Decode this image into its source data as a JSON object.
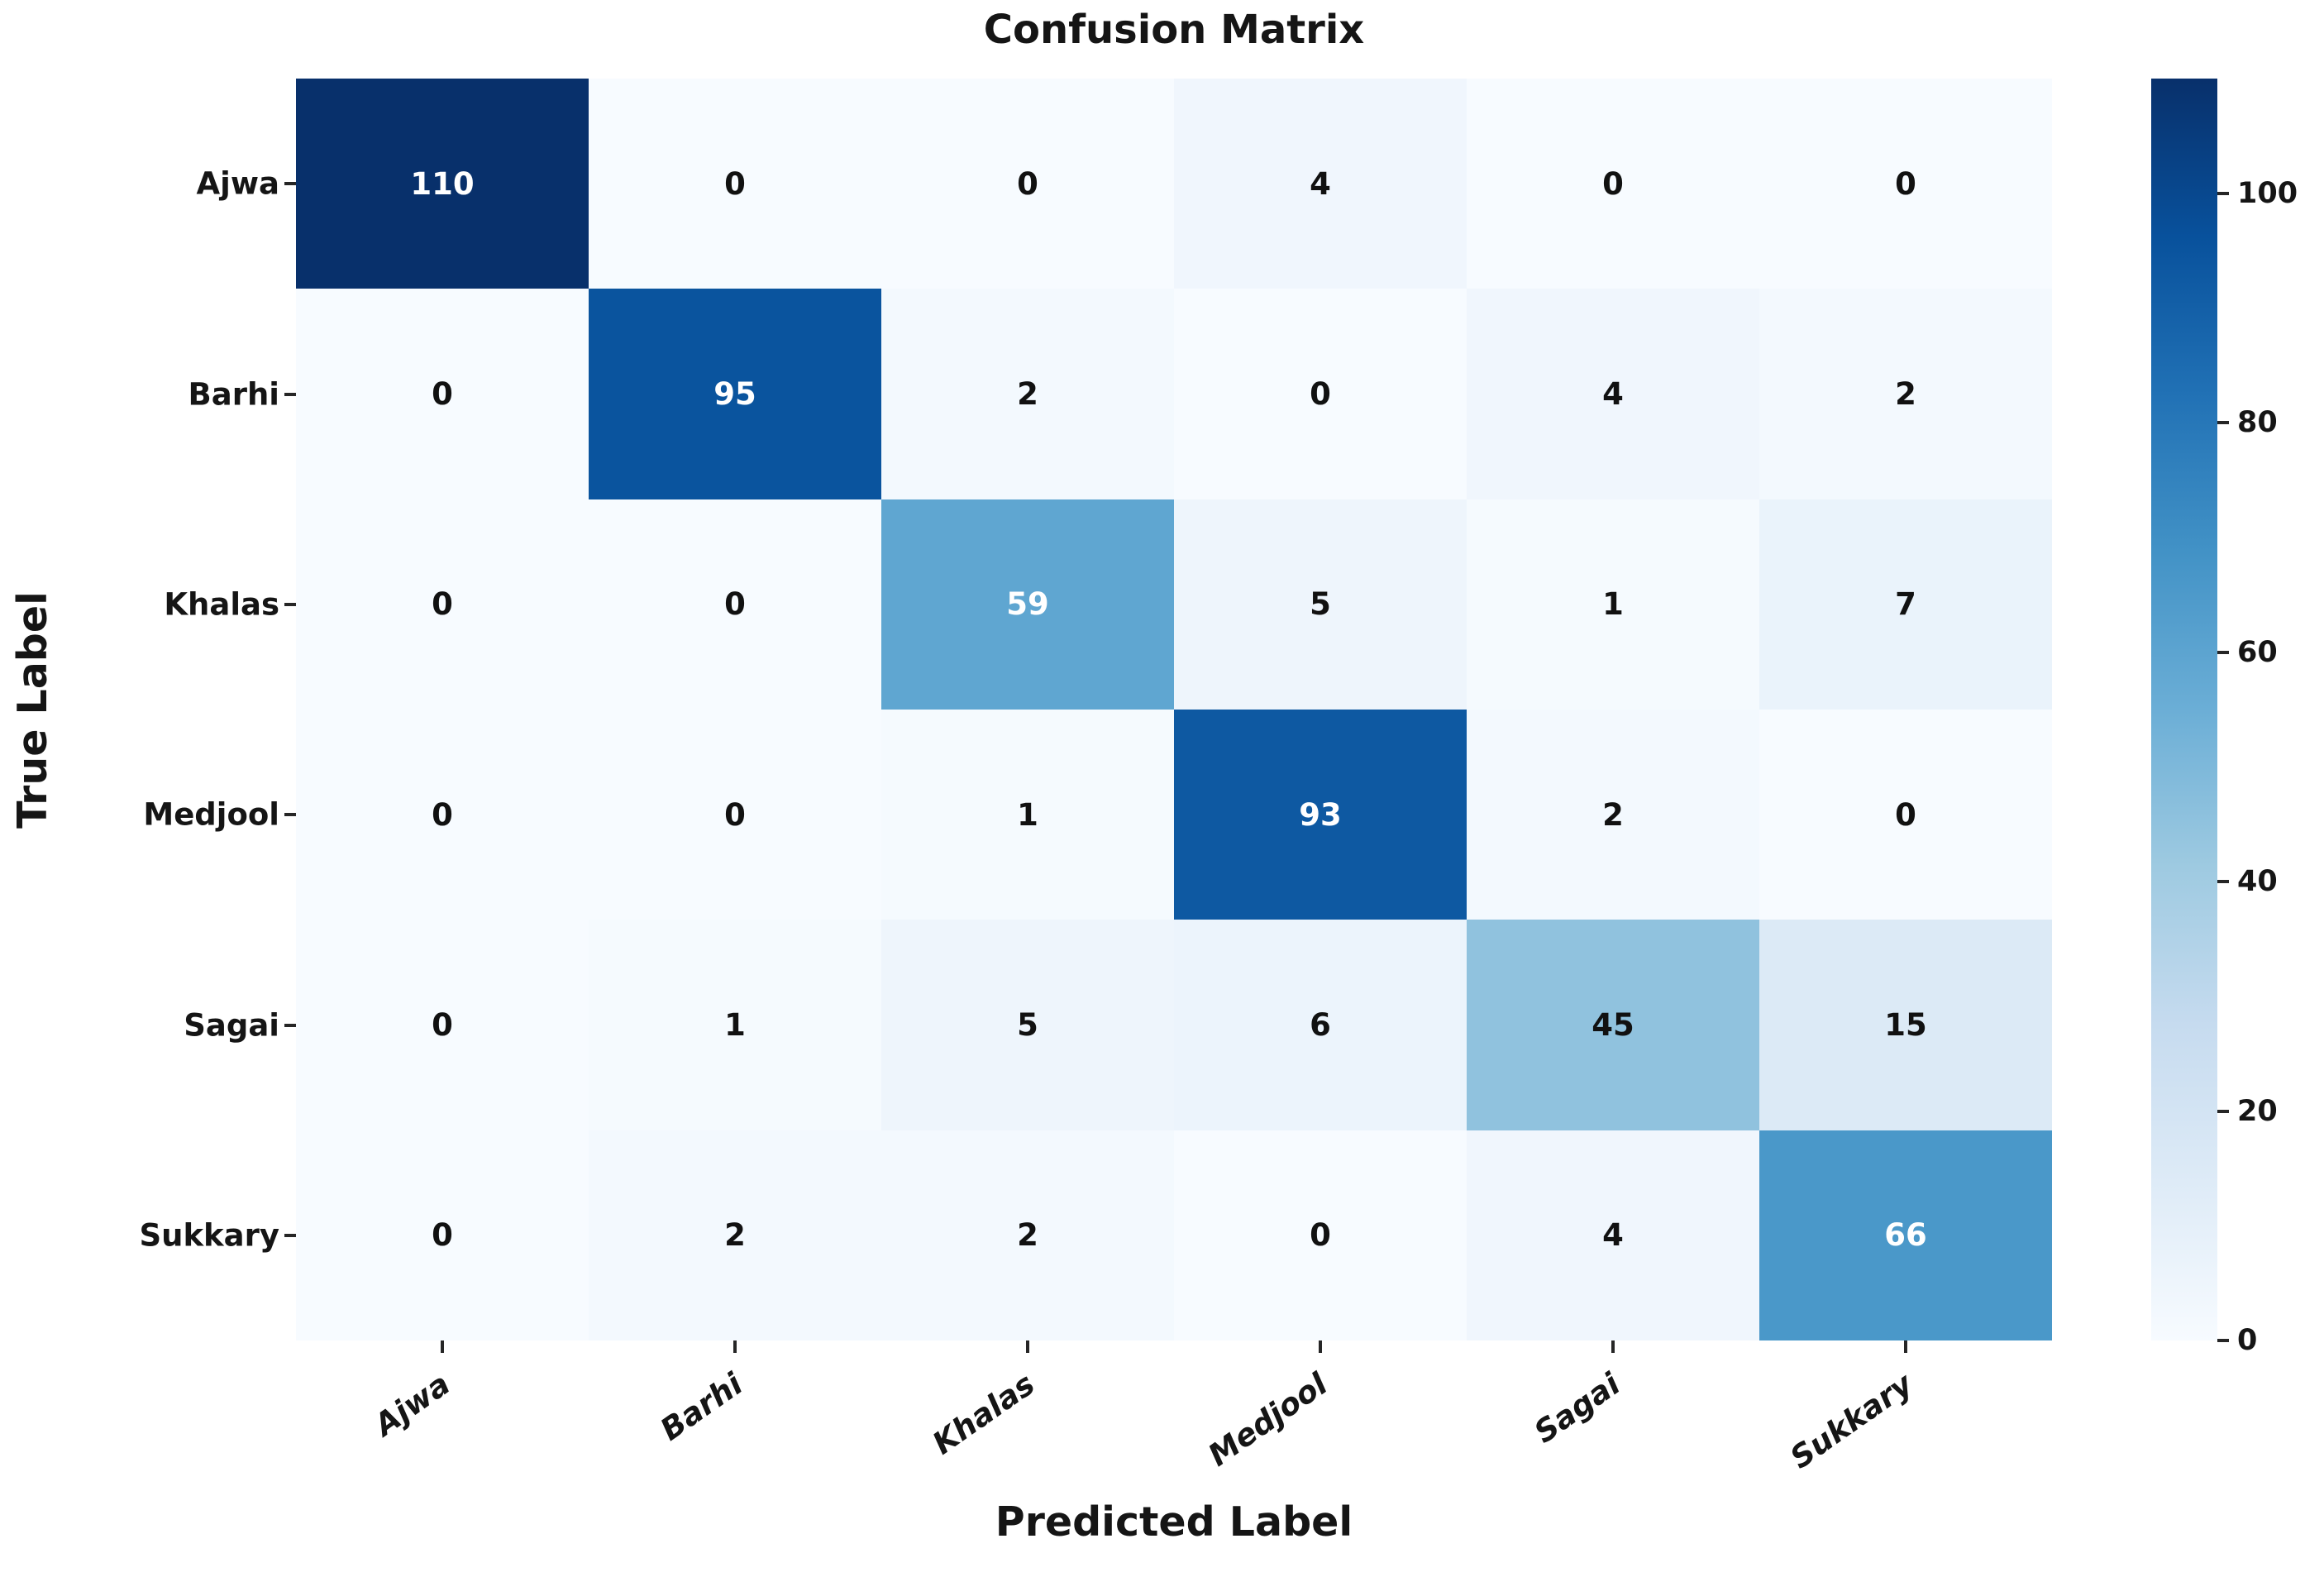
{
  "title": "Confusion Matrix",
  "axes": {
    "x_title": "Predicted Label",
    "y_title": "True Label"
  },
  "chart_data": {
    "type": "heatmap",
    "title": "Confusion Matrix",
    "xlabel": "Predicted Label",
    "ylabel": "True Label",
    "x_tick_labels": [
      "Ajwa",
      "Barhi",
      "Khalas",
      "Medjool",
      "Sagai",
      "Sukkary"
    ],
    "y_tick_labels": [
      "Ajwa",
      "Barhi",
      "Khalas",
      "Medjool",
      "Sagai",
      "Sukkary"
    ],
    "matrix": [
      [
        110,
        0,
        0,
        4,
        0,
        0
      ],
      [
        0,
        95,
        2,
        0,
        4,
        2
      ],
      [
        0,
        0,
        59,
        5,
        1,
        7
      ],
      [
        0,
        0,
        1,
        93,
        2,
        0
      ],
      [
        0,
        1,
        5,
        6,
        45,
        15
      ],
      [
        0,
        2,
        2,
        0,
        4,
        66
      ]
    ],
    "colormap": "Blues",
    "vmin": 0,
    "vmax": 110,
    "colorbar_ticks": [
      0,
      20,
      40,
      60,
      80,
      100
    ],
    "colorbar_position": "right",
    "grid": false,
    "annotated": true
  },
  "colors": {
    "cmap_darkest": "#08306b",
    "cmap_lightest": "#f7fbff",
    "annot_on_dark": "#ffffff",
    "annot_on_light": "#111111",
    "background": "#ffffff"
  }
}
